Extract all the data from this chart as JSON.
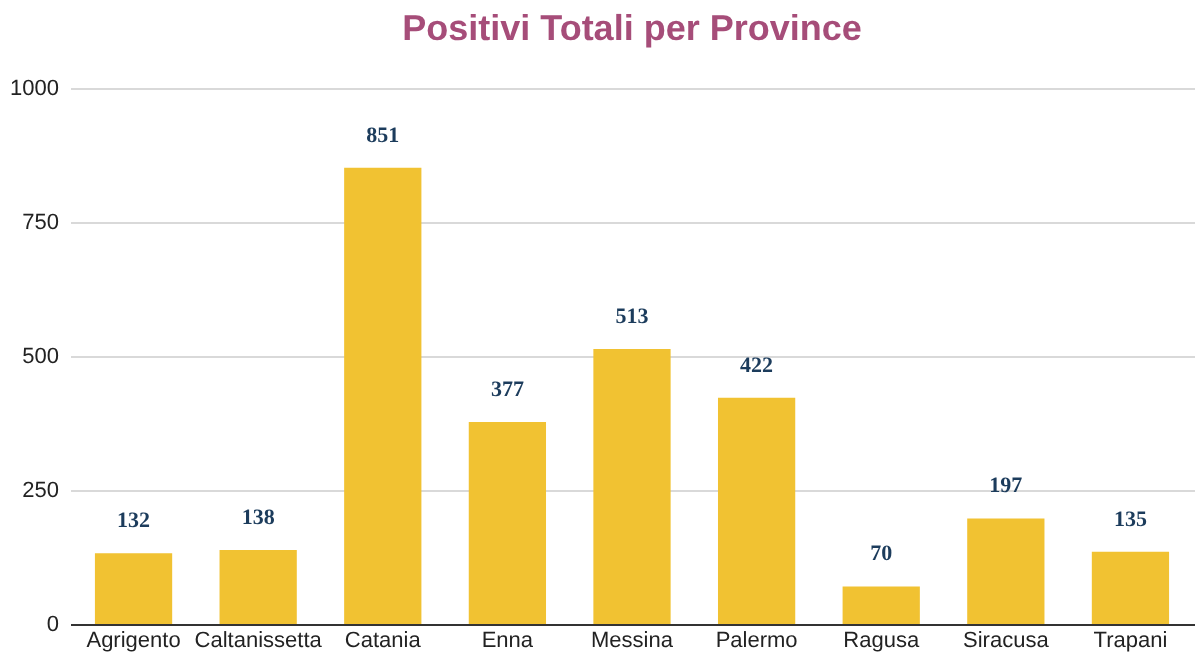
{
  "chart_data": {
    "type": "bar",
    "title": "Positivi Totali per Province",
    "categories": [
      "Agrigento",
      "Caltanissetta",
      "Catania",
      "Enna",
      "Messina",
      "Palermo",
      "Ragusa",
      "Siracusa",
      "Trapani"
    ],
    "values": [
      132,
      138,
      851,
      377,
      513,
      422,
      70,
      197,
      135
    ],
    "color": "#f1c232",
    "ylim": [
      0,
      1000
    ],
    "yticks": [
      0,
      250,
      500,
      750,
      1000
    ],
    "grid": "y",
    "data_labels": true
  }
}
